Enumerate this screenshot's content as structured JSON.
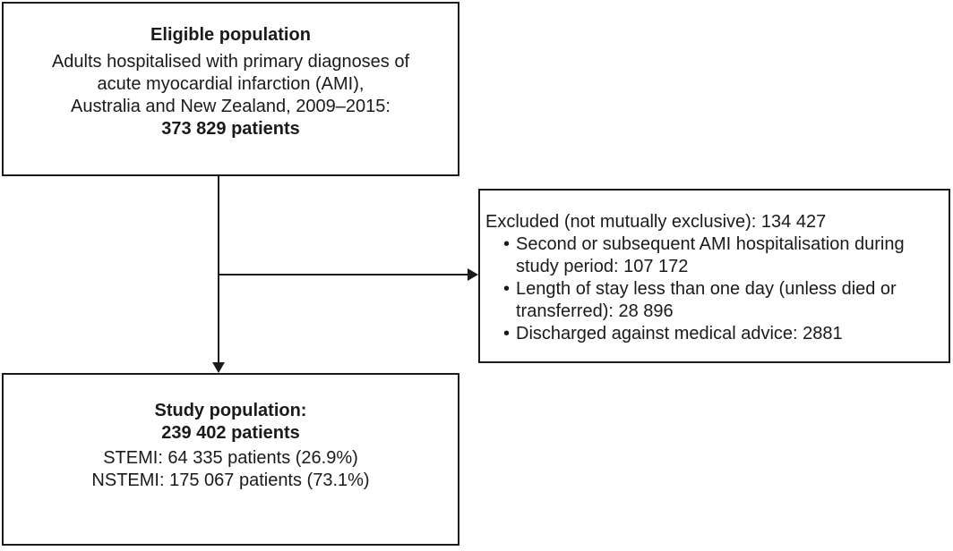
{
  "diagram": {
    "eligible_box": {
      "title": "Eligible population",
      "lines": [
        "Adults hospitalised with primary diagnoses of",
        "acute myocardial infarction (AMI),",
        "Australia and New Zealand, 2009–2015:"
      ],
      "total": "373 829 patients"
    },
    "excluded_box": {
      "header": "Excluded (not mutually exclusive): 134 427",
      "bullet": "•",
      "items": [
        "Second or subsequent AMI hospitalisation during study period: 107 172",
        "Length of stay less than one day (unless died or transferred): 28 896",
        "Discharged against medical advice: 2881"
      ]
    },
    "study_box": {
      "title": "Study population:",
      "total": "239 402 patients",
      "stemi": "STEMI: 64 335 patients (26.9%)",
      "nstemi": "NSTEMI: 175 067 patients (73.1%)"
    },
    "colors": {
      "line": "#1a1a1a",
      "background": "#ffffff"
    }
  }
}
